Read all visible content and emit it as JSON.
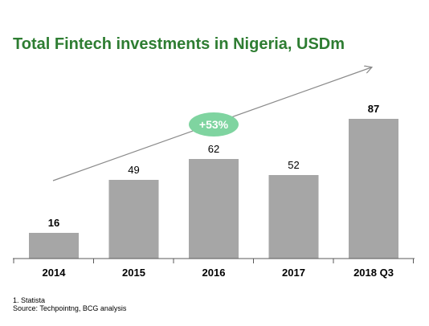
{
  "chart_data": {
    "type": "bar",
    "title": "Total Fintech investments in Nigeria, USDm",
    "categories": [
      "2014",
      "2015",
      "2016",
      "2017",
      "2018 Q3"
    ],
    "values": [
      16,
      49,
      62,
      52,
      87
    ],
    "value_labels": [
      "16",
      "49",
      "62",
      "52",
      "87"
    ],
    "bold_labels": [
      true,
      false,
      false,
      false,
      true
    ],
    "ylim": [
      0,
      100
    ],
    "grid": false,
    "legend": "none",
    "annotation": "+53%",
    "bar_color": "#a6a6a6",
    "title_color": "#2e7d32",
    "badge_color": "#7fd4a0",
    "arrow_color": "#8a8a8a"
  },
  "footnotes": {
    "note": "1. Statista",
    "source": "Source: Techpointng, BCG analysis"
  }
}
